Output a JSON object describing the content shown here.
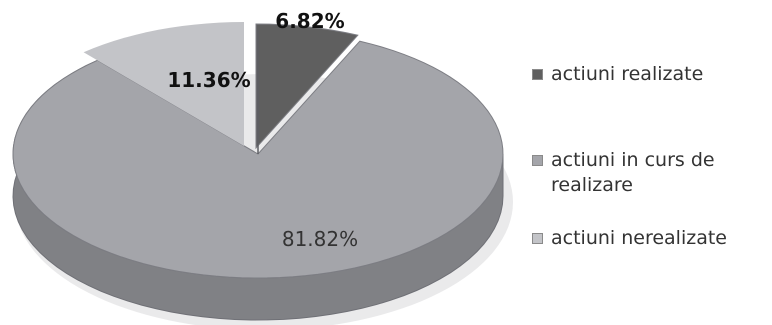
{
  "chart_data": {
    "type": "pie",
    "title": "",
    "slices": [
      {
        "label": "actiuni realizate",
        "value": 6.82,
        "value_label": "6.82%",
        "color": "#5f5f5f"
      },
      {
        "label": "actiuni in curs de realizare",
        "value": 81.82,
        "value_label": "81.82%",
        "color": "#a4a5aa"
      },
      {
        "label": "actiuni nerealizate",
        "value": 11.36,
        "value_label": "11.36%",
        "color": "#c3c4c8"
      }
    ],
    "legend_position": "right",
    "style": "3d"
  }
}
